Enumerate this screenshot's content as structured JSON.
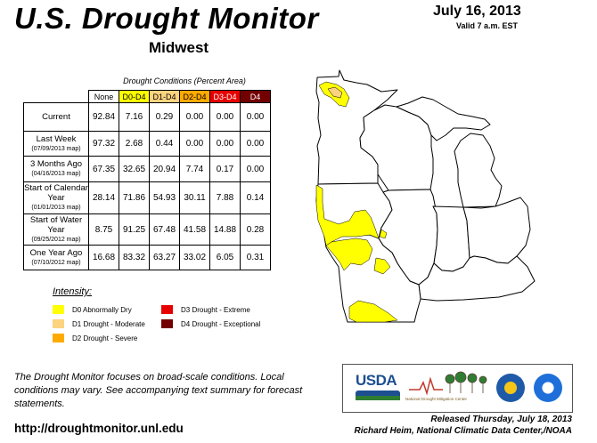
{
  "header": {
    "title": "U.S. Drought Monitor",
    "region": "Midwest",
    "date": "July 16, 2013",
    "valid": "Valid 7 a.m. EST"
  },
  "table": {
    "caption": "Drought Conditions (Percent Area)",
    "columns": [
      "None",
      "D0-D4",
      "D1-D4",
      "D2-D4",
      "D3-D4",
      "D4"
    ],
    "rows": [
      {
        "label": "Current",
        "sub": "",
        "values": [
          "92.84",
          "7.16",
          "0.29",
          "0.00",
          "0.00",
          "0.00"
        ]
      },
      {
        "label": "Last Week",
        "sub": "(07/09/2013 map)",
        "values": [
          "97.32",
          "2.68",
          "0.44",
          "0.00",
          "0.00",
          "0.00"
        ]
      },
      {
        "label": "3 Months Ago",
        "sub": "(04/16/2013 map)",
        "values": [
          "67.35",
          "32.65",
          "20.94",
          "7.74",
          "0.17",
          "0.00"
        ]
      },
      {
        "label": "Start of Calendar Year",
        "sub": "(01/01/2013 map)",
        "values": [
          "28.14",
          "71.86",
          "54.93",
          "30.11",
          "7.88",
          "0.14"
        ]
      },
      {
        "label": "Start of Water Year",
        "sub": "(09/25/2012 map)",
        "values": [
          "8.75",
          "91.25",
          "67.48",
          "41.58",
          "14.88",
          "0.28"
        ]
      },
      {
        "label": "One Year Ago",
        "sub": "(07/10/2012 map)",
        "values": [
          "16.68",
          "83.32",
          "63.27",
          "33.02",
          "6.05",
          "0.31"
        ]
      }
    ]
  },
  "legend": {
    "title": "Intensity:",
    "items": [
      {
        "label": "D0 Abnormally Dry",
        "color": "#ffff00"
      },
      {
        "label": "D1 Drought - Moderate",
        "color": "#fcd37f"
      },
      {
        "label": "D2 Drought - Severe",
        "color": "#ffaa00"
      },
      {
        "label": "D3 Drought - Extreme",
        "color": "#e60000"
      },
      {
        "label": "D4 Drought - Exceptional",
        "color": "#730000"
      }
    ]
  },
  "footnote": "The Drought Monitor focuses on broad-scale conditions. Local conditions may vary. See accompanying text summary for forecast statements.",
  "url": "http://droughtmonitor.unl.edu",
  "released": "Released Thursday, July 18, 2013",
  "author": "Richard Heim, National Climatic Data Center,/NOAA",
  "logos": {
    "usda": "USDA",
    "ndmc": "National Drought Mitigation Center"
  },
  "colors": {
    "d0": "#ffff00",
    "d1": "#fcd37f",
    "d2": "#ffaa00",
    "d3": "#e60000",
    "d4": "#730000"
  }
}
